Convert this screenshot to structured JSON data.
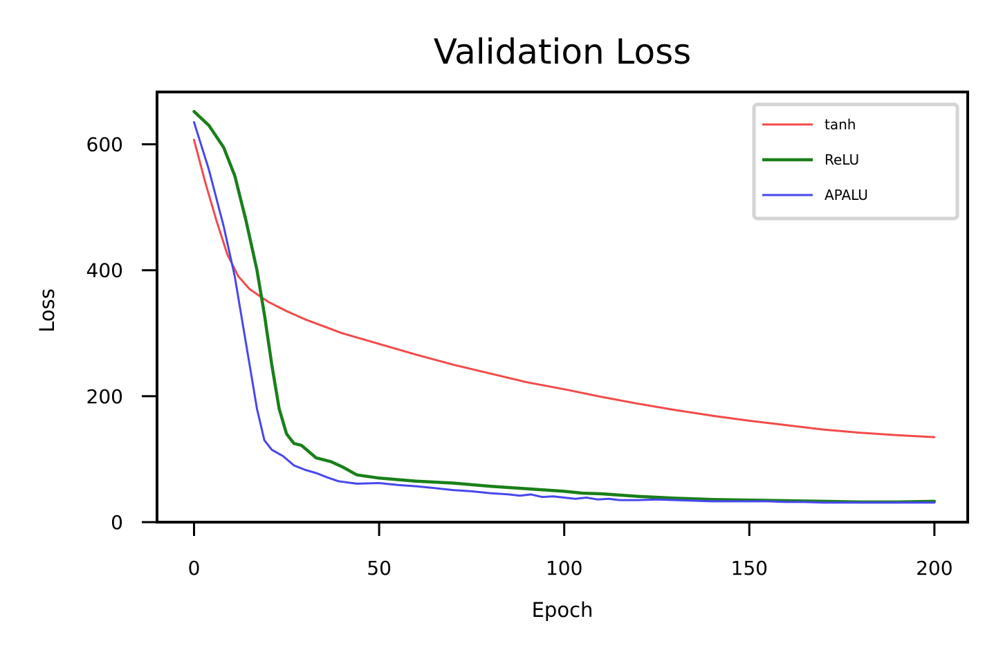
{
  "chart_data": {
    "type": "line",
    "title": "Validation Loss",
    "xlabel": "Epoch",
    "ylabel": "Loss",
    "xlim": [
      -10,
      209
    ],
    "ylim": [
      0,
      683
    ],
    "xticks": [
      0,
      50,
      100,
      150,
      200
    ],
    "yticks": [
      0,
      200,
      400,
      600
    ],
    "legend_position": "top-right",
    "series": [
      {
        "name": "tanh",
        "color": "#f24a4a",
        "points": [
          [
            0,
            607
          ],
          [
            3,
            540
          ],
          [
            6,
            480
          ],
          [
            9,
            425
          ],
          [
            12,
            390
          ],
          [
            15,
            370
          ],
          [
            18,
            358
          ],
          [
            20,
            350
          ],
          [
            25,
            335
          ],
          [
            30,
            322
          ],
          [
            40,
            300
          ],
          [
            50,
            283
          ],
          [
            60,
            266
          ],
          [
            70,
            250
          ],
          [
            80,
            236
          ],
          [
            90,
            222
          ],
          [
            100,
            211
          ],
          [
            110,
            199
          ],
          [
            120,
            188
          ],
          [
            130,
            178
          ],
          [
            140,
            169
          ],
          [
            150,
            161
          ],
          [
            160,
            154
          ],
          [
            170,
            147
          ],
          [
            180,
            142
          ],
          [
            190,
            138
          ],
          [
            200,
            135
          ]
        ]
      },
      {
        "name": "ReLU",
        "color": "#1a7f1a",
        "points": [
          [
            0,
            652
          ],
          [
            4,
            630
          ],
          [
            8,
            595
          ],
          [
            11,
            550
          ],
          [
            14,
            480
          ],
          [
            17,
            400
          ],
          [
            19,
            330
          ],
          [
            21,
            250
          ],
          [
            23,
            180
          ],
          [
            25,
            140
          ],
          [
            27,
            125
          ],
          [
            29,
            122
          ],
          [
            31,
            112
          ],
          [
            33,
            102
          ],
          [
            37,
            96
          ],
          [
            40,
            88
          ],
          [
            44,
            75
          ],
          [
            50,
            70
          ],
          [
            60,
            65
          ],
          [
            70,
            62
          ],
          [
            80,
            57
          ],
          [
            90,
            53
          ],
          [
            100,
            49
          ],
          [
            105,
            46
          ],
          [
            110,
            45
          ],
          [
            120,
            41
          ],
          [
            130,
            38
          ],
          [
            140,
            36
          ],
          [
            150,
            35
          ],
          [
            160,
            34
          ],
          [
            170,
            33
          ],
          [
            180,
            32
          ],
          [
            190,
            32
          ],
          [
            200,
            33
          ]
        ]
      },
      {
        "name": "APALU",
        "color": "#4747ee",
        "points": [
          [
            0,
            635
          ],
          [
            4,
            560
          ],
          [
            8,
            470
          ],
          [
            11,
            390
          ],
          [
            13,
            320
          ],
          [
            15,
            250
          ],
          [
            17,
            180
          ],
          [
            19,
            130
          ],
          [
            21,
            115
          ],
          [
            24,
            105
          ],
          [
            27,
            90
          ],
          [
            30,
            83
          ],
          [
            33,
            78
          ],
          [
            36,
            71
          ],
          [
            39,
            65
          ],
          [
            44,
            61
          ],
          [
            50,
            62
          ],
          [
            55,
            59
          ],
          [
            60,
            57
          ],
          [
            65,
            54
          ],
          [
            70,
            51
          ],
          [
            75,
            49
          ],
          [
            80,
            46
          ],
          [
            85,
            44
          ],
          [
            88,
            42
          ],
          [
            91,
            44
          ],
          [
            94,
            40
          ],
          [
            97,
            41
          ],
          [
            100,
            39
          ],
          [
            103,
            37
          ],
          [
            106,
            39
          ],
          [
            109,
            36
          ],
          [
            112,
            37
          ],
          [
            115,
            35
          ],
          [
            120,
            35
          ],
          [
            125,
            36
          ],
          [
            130,
            35
          ],
          [
            135,
            34
          ],
          [
            140,
            33
          ],
          [
            145,
            33
          ],
          [
            150,
            33
          ],
          [
            155,
            33
          ],
          [
            160,
            32
          ],
          [
            165,
            32
          ],
          [
            170,
            31
          ],
          [
            175,
            31
          ],
          [
            180,
            31
          ],
          [
            185,
            31
          ],
          [
            190,
            31
          ],
          [
            195,
            31
          ],
          [
            200,
            31
          ]
        ]
      }
    ]
  }
}
